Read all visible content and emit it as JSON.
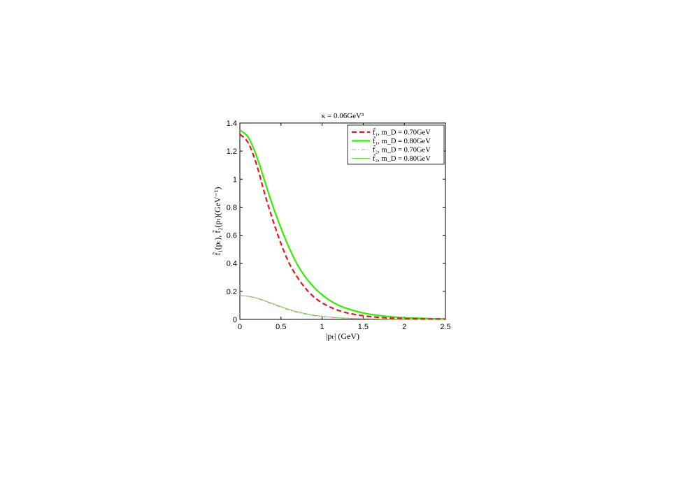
{
  "chart_data": {
    "type": "line",
    "title": "κ = 0.06GeV³",
    "xlabel": "|pₜ| (GeV)",
    "ylabel": "f̃₁(pₜ), f̃₂(pₜ)(GeV⁻¹)",
    "xlim": [
      0,
      2.5
    ],
    "ylim": [
      0,
      1.4
    ],
    "xticks": [
      "0",
      "0.5",
      "1",
      "1.5",
      "2",
      "2.5"
    ],
    "yticks": [
      "0",
      "0.2",
      "0.4",
      "0.6",
      "0.8",
      "1",
      "1.2",
      "1.4"
    ],
    "legend_position": "top-right",
    "grid": false,
    "x": [
      0,
      0.1,
      0.2,
      0.3,
      0.4,
      0.5,
      0.6,
      0.7,
      0.8,
      0.9,
      1.0,
      1.1,
      1.2,
      1.3,
      1.4,
      1.5,
      1.6,
      1.7,
      1.8,
      1.9,
      2.0,
      2.1,
      2.2,
      2.3,
      2.4,
      2.5
    ],
    "series": [
      {
        "name": "f̃₁, m_D = 0.70GeV",
        "color": "#e8141e",
        "style": "dashed",
        "values": [
          1.32,
          1.26,
          1.11,
          0.9,
          0.71,
          0.54,
          0.4,
          0.3,
          0.22,
          0.16,
          0.118,
          0.087,
          0.064,
          0.047,
          0.035,
          0.026,
          0.019,
          0.014,
          0.01,
          0.008,
          0.006,
          0.005,
          0.004,
          0.003,
          0.0025,
          0.002
        ]
      },
      {
        "name": "f̃₁, m_D = 0.80GeV",
        "color": "#33ee00",
        "style": "solid-thick",
        "values": [
          1.35,
          1.3,
          1.17,
          0.99,
          0.81,
          0.65,
          0.51,
          0.39,
          0.3,
          0.23,
          0.175,
          0.133,
          0.101,
          0.078,
          0.06,
          0.046,
          0.035,
          0.027,
          0.021,
          0.016,
          0.012,
          0.01,
          0.008,
          0.006,
          0.005,
          0.004
        ]
      },
      {
        "name": "f̃₂, m_D = 0.70GeV",
        "color": "#ee88bb",
        "style": "dashdot",
        "values": [
          0.168,
          0.163,
          0.15,
          0.13,
          0.107,
          0.085,
          0.065,
          0.049,
          0.036,
          0.026,
          0.019,
          0.014,
          0.01,
          0.007,
          0.005,
          0.004,
          0.003,
          0.002,
          0.0015,
          0.001,
          0.0008,
          0.0006,
          0.0004,
          0.0003,
          0.0002,
          0.0001
        ]
      },
      {
        "name": "f̃₂, m_D = 0.80GeV",
        "color": "#66dd33",
        "style": "solid-thin",
        "values": [
          0.17,
          0.165,
          0.153,
          0.134,
          0.112,
          0.091,
          0.071,
          0.054,
          0.041,
          0.03,
          0.022,
          0.016,
          0.012,
          0.009,
          0.006,
          0.005,
          0.0035,
          0.0025,
          0.0018,
          0.0013,
          0.001,
          0.0007,
          0.0005,
          0.0004,
          0.0003,
          0.0002
        ]
      }
    ]
  }
}
